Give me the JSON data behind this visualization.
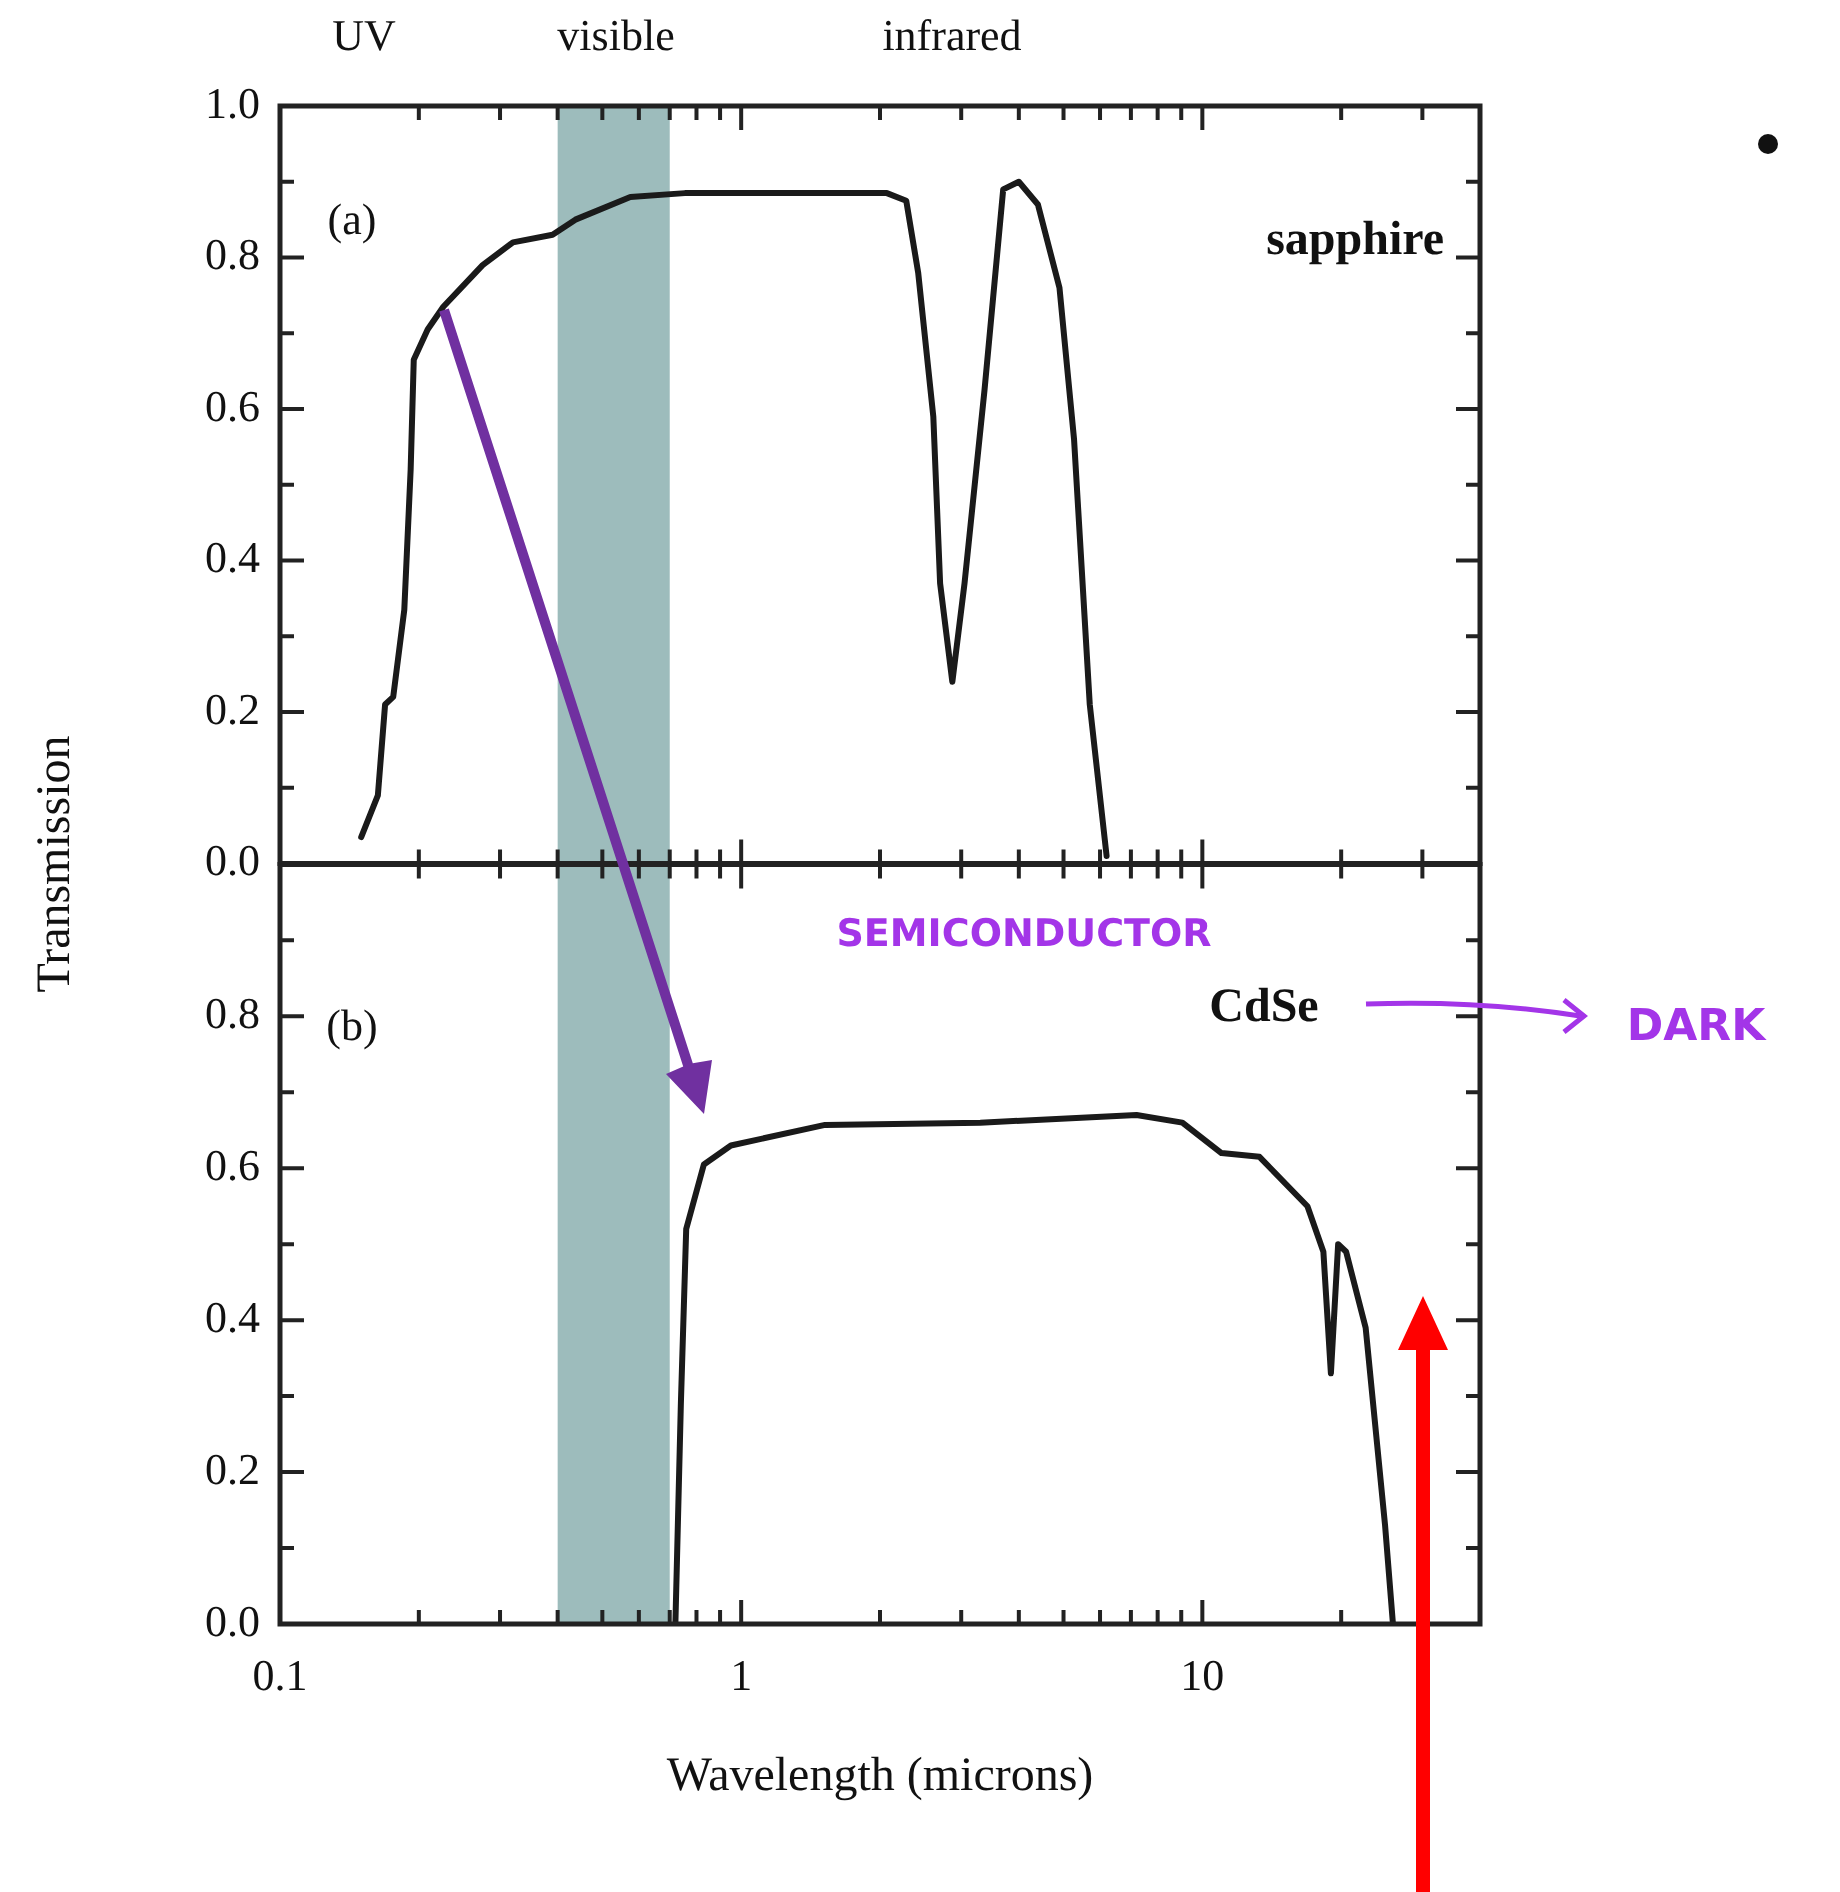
{
  "chart_data": [
    {
      "type": "line",
      "log": "x",
      "xlim": [
        0.1,
        40
      ],
      "ylim": [
        0,
        1
      ],
      "tick_labels": "y",
      "marker": "none",
      "line_style": "solid",
      "legend": false,
      "grid": false,
      "ylabel": "Transmission",
      "xticks": [
        0.1,
        {
          "value": 0.2,
          "label": null
        },
        {
          "value": 0.3,
          "label": null
        },
        {
          "value": 0.4,
          "label": null
        },
        {
          "value": 0.5,
          "label": null
        },
        {
          "value": 0.6,
          "label": null
        },
        {
          "value": 0.7,
          "label": null
        },
        {
          "value": 0.8,
          "label": null
        },
        {
          "value": 0.9,
          "label": null
        },
        1,
        {
          "value": 2,
          "label": null
        },
        {
          "value": 3,
          "label": null
        },
        {
          "value": 4,
          "label": null
        },
        {
          "value": 5,
          "label": null
        },
        {
          "value": 6,
          "label": null
        },
        {
          "value": 7,
          "label": null
        },
        {
          "value": 8,
          "label": null
        },
        {
          "value": 9,
          "label": null
        },
        10,
        {
          "value": 20,
          "label": null
        },
        {
          "value": 30,
          "label": null
        },
        {
          "value": 40,
          "label": null
        }
      ],
      "yticks": [
        {
          "value": 0,
          "label": "0.0"
        },
        {
          "value": 0.1,
          "label": null
        },
        0.2,
        {
          "value": 0.3,
          "label": null
        },
        0.4,
        {
          "value": 0.5,
          "label": null
        },
        0.6,
        {
          "value": 0.7,
          "label": null
        },
        0.8,
        {
          "value": 0.9,
          "label": null
        },
        {
          "value": 1,
          "label": "1.0"
        }
      ],
      "bands": [
        {
          "axis": "x",
          "from": 0.4,
          "to": 0.7,
          "color": "#9dbcbc"
        }
      ],
      "annotations": [
        "(a)",
        "sapphire",
        "UV",
        "visible",
        "infrared"
      ],
      "series": [
        {
          "color": "#1a1a1a",
          "x": [
            0.15,
            0.163,
            0.169,
            0.176,
            0.186,
            0.192,
            0.195,
            0.209,
            0.226,
            0.275,
            0.32,
            0.39,
            0.437,
            0.575,
            0.755,
            2.07,
            2.28,
            2.42,
            2.61,
            2.7,
            2.87,
            3.05,
            3.37,
            3.7,
            4.0,
            4.4,
            4.9,
            5.27,
            5.7,
            6.2
          ],
          "values": [
            0.035,
            0.09,
            0.21,
            0.22,
            0.335,
            0.52,
            0.665,
            0.705,
            0.735,
            0.79,
            0.82,
            0.83,
            0.85,
            0.88,
            0.885,
            0.885,
            0.875,
            0.78,
            0.59,
            0.37,
            0.24,
            0.37,
            0.625,
            0.89,
            0.9,
            0.87,
            0.76,
            0.56,
            0.21,
            0.01
          ]
        }
      ]
    },
    {
      "type": "line",
      "log": "x",
      "xlim": [
        0.1,
        40
      ],
      "ylim": [
        0,
        1
      ],
      "marker": "none",
      "line_style": "solid",
      "legend": false,
      "grid": false,
      "xlabel": "Wavelength (microns)",
      "xticks": [
        0.1,
        {
          "value": 0.2,
          "label": null
        },
        {
          "value": 0.3,
          "label": null
        },
        {
          "value": 0.4,
          "label": null
        },
        {
          "value": 0.5,
          "label": null
        },
        {
          "value": 0.6,
          "label": null
        },
        {
          "value": 0.7,
          "label": null
        },
        {
          "value": 0.8,
          "label": null
        },
        {
          "value": 0.9,
          "label": null
        },
        1,
        {
          "value": 2,
          "label": null
        },
        {
          "value": 3,
          "label": null
        },
        {
          "value": 4,
          "label": null
        },
        {
          "value": 5,
          "label": null
        },
        {
          "value": 6,
          "label": null
        },
        {
          "value": 7,
          "label": null
        },
        {
          "value": 8,
          "label": null
        },
        {
          "value": 9,
          "label": null
        },
        10,
        {
          "value": 20,
          "label": null
        },
        {
          "value": 30,
          "label": null
        },
        {
          "value": 40,
          "label": null
        }
      ],
      "yticks": [
        {
          "value": 0,
          "label": "0.0"
        },
        {
          "value": 0.1,
          "label": null
        },
        0.2,
        {
          "value": 0.3,
          "label": null
        },
        0.4,
        {
          "value": 0.5,
          "label": null
        },
        0.6,
        {
          "value": 0.7,
          "label": null
        },
        0.8,
        {
          "value": 0.9,
          "label": null
        }
      ],
      "bands": [
        {
          "axis": "x",
          "from": 0.4,
          "to": 0.7,
          "color": "#9dbcbc"
        }
      ],
      "annotations": [
        "(b)",
        "CdSe",
        "SEMICONDUCTOR",
        "DARK"
      ],
      "series": [
        {
          "color": "#1a1a1a",
          "x": [
            0.72,
            0.74,
            0.76,
            0.83,
            0.95,
            1.52,
            3.3,
            7.2,
            9.05,
            11.0,
            13.3,
            16.9,
            18.3,
            19.0,
            19.7,
            20.5,
            22.6,
            24.9,
            25.9
          ],
          "values": [
            0,
            0.29,
            0.52,
            0.605,
            0.63,
            0.657,
            0.66,
            0.67,
            0.66,
            0.62,
            0.615,
            0.55,
            0.49,
            0.33,
            0.5,
            0.49,
            0.39,
            0.13,
            0
          ]
        }
      ]
    }
  ]
}
